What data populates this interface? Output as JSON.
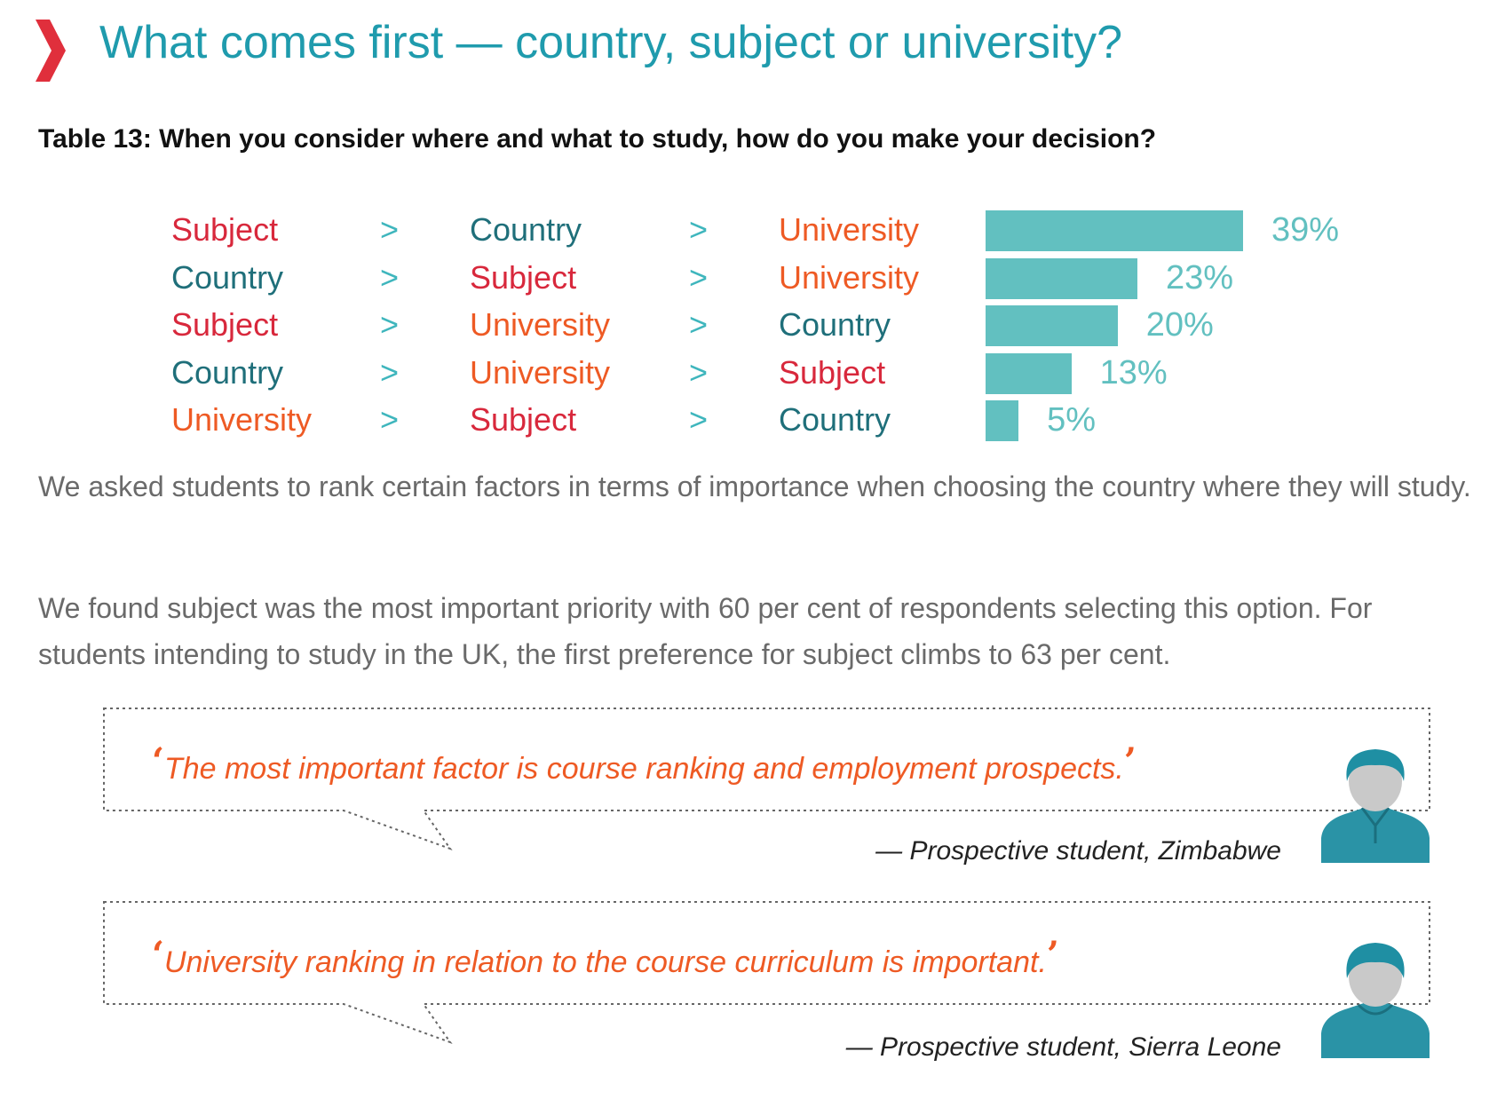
{
  "heading": "What comes first — country, subject or university?",
  "table_title": "Table 13: When you consider where and what to study, how do you make your decision?",
  "colors": {
    "Subject": "#d8283c",
    "Country": "#1f6f7a",
    "University": "#ee5a24",
    "heading": "#1f9bad",
    "bar": "#62c0c0",
    "chevron": "#e02f3c"
  },
  "chart_data": {
    "type": "bar",
    "categories": [
      "Subject > Country > University",
      "Country > Subject > University",
      "Subject > University > Country",
      "Country > University > Subject",
      "University > Subject > Country"
    ],
    "values": [
      39,
      23,
      20,
      13,
      5
    ],
    "unit": "%",
    "value_labels": [
      "39%",
      "23%",
      "20%",
      "13%",
      "5%"
    ],
    "orientation": "horizontal",
    "title": "Table 13: When you consider where and what to study, how do you make your decision?"
  },
  "rows": [
    {
      "order": [
        "Subject",
        "Country",
        "University"
      ],
      "sep": ">",
      "label": "39%"
    },
    {
      "order": [
        "Country",
        "Subject",
        "University"
      ],
      "sep": ">",
      "label": "23%"
    },
    {
      "order": [
        "Subject",
        "University",
        "Country"
      ],
      "sep": ">",
      "label": "20%"
    },
    {
      "order": [
        "Country",
        "University",
        "Subject"
      ],
      "sep": ">",
      "label": "13%"
    },
    {
      "order": [
        "University",
        "Subject",
        "Country"
      ],
      "sep": ">",
      "label": "5%"
    }
  ],
  "paragraphs": [
    "We asked students to rank certain factors in terms of importance when choosing the country where they will study.",
    "We found subject was the most important priority with 60 per cent of respondents selecting this option. For students intending to study in the UK, the first preference for subject climbs to 63 per cent."
  ],
  "quotes": [
    {
      "open": "‘",
      "text": "The most important factor is course ranking and employment prospects.",
      "close": "’",
      "attribution": "— Prospective student, Zimbabwe",
      "avatar_icon": "student-avatar-icon"
    },
    {
      "open": "‘",
      "text": "University ranking in relation to the course curriculum is important.",
      "close": "’",
      "attribution": "— Prospective student, Sierra Leone",
      "avatar_icon": "student-avatar-icon"
    }
  ]
}
